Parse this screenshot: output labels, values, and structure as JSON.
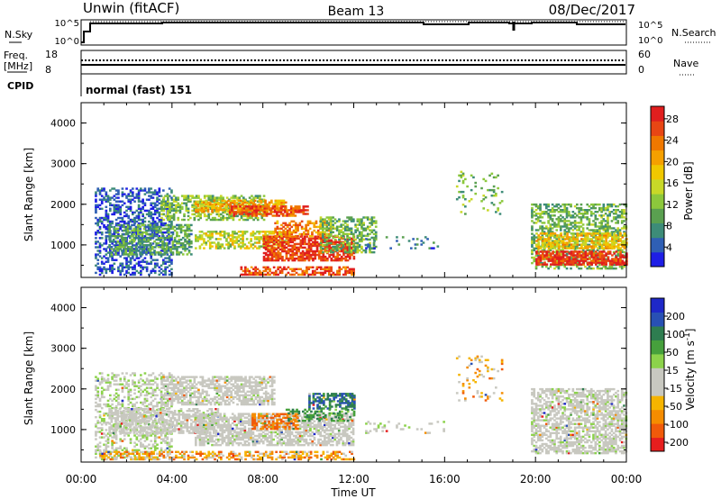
{
  "header": {
    "station": "Unwin (fitACF)",
    "beam": "Beam 13",
    "date": "08/Dec/2017"
  },
  "nsky": {
    "label": "N.Sky",
    "ticks": [
      "10^5",
      "10^0"
    ],
    "right_label": "N.Search",
    "right_ticks": [
      "10^5",
      "10^0"
    ]
  },
  "freq": {
    "label_line1": "Freq.",
    "label_line2": "[MHz]",
    "ticks": [
      "18",
      "8"
    ],
    "right_label": "Nave",
    "right_ticks": [
      "60",
      "0"
    ]
  },
  "cpid": {
    "label": "CPID",
    "mode": "normal (fast) 151"
  },
  "time_axis": {
    "label": "Time UT",
    "ticks": [
      "00:00",
      "04:00",
      "08:00",
      "12:00",
      "16:00",
      "20:00",
      "00:00"
    ],
    "range_hours": [
      0,
      24
    ]
  },
  "chart_data": [
    {
      "type": "heatmap",
      "name": "power",
      "ylabel": "Slant Range [km]",
      "yticks": [
        "1000",
        "2000",
        "3000",
        "4000"
      ],
      "ylim": [
        200,
        4500
      ],
      "xlim": [
        0,
        24
      ],
      "colorbar": {
        "label": "Power [dB]",
        "ticks": [
          "4",
          "8",
          "12",
          "16",
          "20",
          "24",
          "28"
        ],
        "colors": [
          "#1e1ee6",
          "#2f5fb4",
          "#3d8c78",
          "#5aa050",
          "#8cc83c",
          "#c8d828",
          "#f0c800",
          "#f5a000",
          "#f07800",
          "#e84614",
          "#e01e1e"
        ]
      },
      "regions": [
        {
          "t": [
            0.6,
            4.0
          ],
          "r": [
            250,
            2400
          ],
          "level": 0.12,
          "density": 0.45
        },
        {
          "t": [
            1.2,
            4.8
          ],
          "r": [
            750,
            1500
          ],
          "level": 0.3,
          "density": 0.55
        },
        {
          "t": [
            3.5,
            8.0
          ],
          "r": [
            1600,
            2200
          ],
          "level": 0.4,
          "density": 0.55
        },
        {
          "t": [
            5.0,
            9.0
          ],
          "r": [
            1800,
            2100
          ],
          "level": 0.65,
          "density": 0.6
        },
        {
          "t": [
            6.5,
            10.0
          ],
          "r": [
            1700,
            1950
          ],
          "level": 0.85,
          "density": 0.65
        },
        {
          "t": [
            5.0,
            9.0
          ],
          "r": [
            900,
            1350
          ],
          "level": 0.5,
          "density": 0.55
        },
        {
          "t": [
            8.0,
            12.0
          ],
          "r": [
            600,
            1200
          ],
          "level": 0.9,
          "density": 0.7
        },
        {
          "t": [
            8.5,
            11.0
          ],
          "r": [
            1200,
            1600
          ],
          "level": 0.75,
          "density": 0.55
        },
        {
          "t": [
            10.5,
            13.0
          ],
          "r": [
            800,
            1700
          ],
          "level": 0.35,
          "density": 0.5
        },
        {
          "t": [
            7.0,
            12.0
          ],
          "r": [
            250,
            450
          ],
          "level": 0.85,
          "density": 0.6
        },
        {
          "t": [
            12.5,
            16.0
          ],
          "r": [
            900,
            1200
          ],
          "level": 0.15,
          "density": 0.1
        },
        {
          "t": [
            16.5,
            18.5
          ],
          "r": [
            1700,
            2800
          ],
          "level": 0.35,
          "density": 0.12
        },
        {
          "t": [
            19.8,
            24.0
          ],
          "r": [
            400,
            2000
          ],
          "level": 0.35,
          "density": 0.5
        },
        {
          "t": [
            20.0,
            24.0
          ],
          "r": [
            900,
            1300
          ],
          "level": 0.6,
          "density": 0.6
        },
        {
          "t": [
            20.0,
            24.0
          ],
          "r": [
            500,
            850
          ],
          "level": 0.93,
          "density": 0.75
        }
      ]
    },
    {
      "type": "heatmap",
      "name": "velocity",
      "ylabel": "Velocity [m s^-1]",
      "yaxis_label": "Slant Range [km]",
      "yticks": [
        "1000",
        "2000",
        "3000",
        "4000"
      ],
      "ylim": [
        200,
        4500
      ],
      "xlim": [
        0,
        24
      ],
      "colorbar": {
        "label": "Velocity [m s^-1]",
        "ticks": [
          "200",
          "100",
          "50",
          "15",
          "-15",
          "-50",
          "-100",
          "-200"
        ],
        "colors": [
          "#1e28c8",
          "#2850b4",
          "#2e7d50",
          "#46a03c",
          "#8cd24b",
          "#c8c8c0",
          "#c8c8c0",
          "#f5b400",
          "#f58c00",
          "#f05a0a",
          "#e61e1e"
        ]
      },
      "regions": [
        {
          "t": [
            0.6,
            4.0
          ],
          "r": [
            250,
            2400
          ],
          "level": 0.5,
          "density": 0.35,
          "spread": 0.12
        },
        {
          "t": [
            1.2,
            6.0
          ],
          "r": [
            900,
            1500
          ],
          "level": 0.5,
          "density": 0.6,
          "spread": 0.05
        },
        {
          "t": [
            3.5,
            8.5
          ],
          "r": [
            1600,
            2300
          ],
          "level": 0.5,
          "density": 0.6,
          "spread": 0.05
        },
        {
          "t": [
            5.0,
            12.0
          ],
          "r": [
            600,
            1400
          ],
          "level": 0.5,
          "density": 0.65,
          "spread": 0.05
        },
        {
          "t": [
            7.5,
            9.5
          ],
          "r": [
            1000,
            1400
          ],
          "level": 0.82,
          "density": 0.55,
          "spread": 0.06
        },
        {
          "t": [
            10.0,
            12.0
          ],
          "r": [
            1500,
            1900
          ],
          "level": 0.2,
          "density": 0.55,
          "spread": 0.1
        },
        {
          "t": [
            9.0,
            12.0
          ],
          "r": [
            1200,
            1500
          ],
          "level": 0.3,
          "density": 0.4,
          "spread": 0.08
        },
        {
          "t": [
            0.8,
            12.0
          ],
          "r": [
            250,
            450
          ],
          "level": 0.72,
          "density": 0.45,
          "spread": 0.15
        },
        {
          "t": [
            12.5,
            16.0
          ],
          "r": [
            900,
            1200
          ],
          "level": 0.5,
          "density": 0.1,
          "spread": 0.1
        },
        {
          "t": [
            16.5,
            18.5
          ],
          "r": [
            1700,
            2800
          ],
          "level": 0.7,
          "density": 0.12,
          "spread": 0.15
        },
        {
          "t": [
            19.8,
            24.0
          ],
          "r": [
            400,
            2000
          ],
          "level": 0.5,
          "density": 0.6,
          "spread": 0.06
        }
      ]
    }
  ]
}
